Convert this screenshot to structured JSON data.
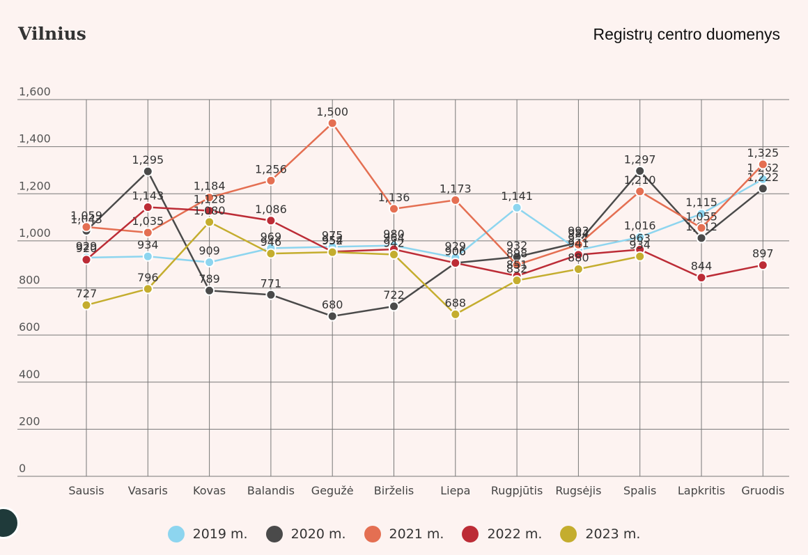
{
  "title": "Vilnius",
  "source": "Registrų centro duomenys",
  "chart_data": {
    "type": "line",
    "categories": [
      "Sausis",
      "Vasaris",
      "Kovas",
      "Balandis",
      "Gegužė",
      "Birželis",
      "Liepa",
      "Rugpjūtis",
      "Rugsėjis",
      "Spalis",
      "Lapkritis",
      "Gruodis"
    ],
    "ylim": [
      0,
      1600
    ],
    "yticks": [
      0,
      200,
      400,
      600,
      800,
      1000,
      1200,
      1400,
      1600
    ],
    "ytick_labels": [
      "0",
      "200",
      "400",
      "600",
      "800",
      "1,000",
      "1,200",
      "1,400",
      "1,600"
    ],
    "grid": true,
    "legend_position": "bottom",
    "series": [
      {
        "name": "2019 m.",
        "color": "#8dd5ef",
        "values": [
          929,
          934,
          909,
          969,
          975,
          980,
          929,
          1141,
          961,
          1016,
          1115,
          1262
        ]
      },
      {
        "name": "2020 m.",
        "color": "#4a4a4a",
        "values": [
          1043,
          1295,
          789,
          771,
          680,
          722,
          906,
          932,
          993,
          1297,
          1012,
          1222
        ]
      },
      {
        "name": "2021 m.",
        "color": "#e46f52",
        "values": [
          1059,
          1035,
          1184,
          1256,
          1500,
          1136,
          1173,
          898,
          984,
          1210,
          1055,
          1325
        ]
      },
      {
        "name": "2022 m.",
        "color": "#bc2c36",
        "values": [
          920,
          1143,
          1128,
          1086,
          954,
          964,
          906,
          851,
          941,
          963,
          844,
          897
        ]
      },
      {
        "name": "2023 m.",
        "color": "#c4ad2e",
        "values": [
          727,
          796,
          1080,
          946,
          952,
          942,
          688,
          832,
          880,
          934,
          null,
          null
        ]
      }
    ]
  }
}
